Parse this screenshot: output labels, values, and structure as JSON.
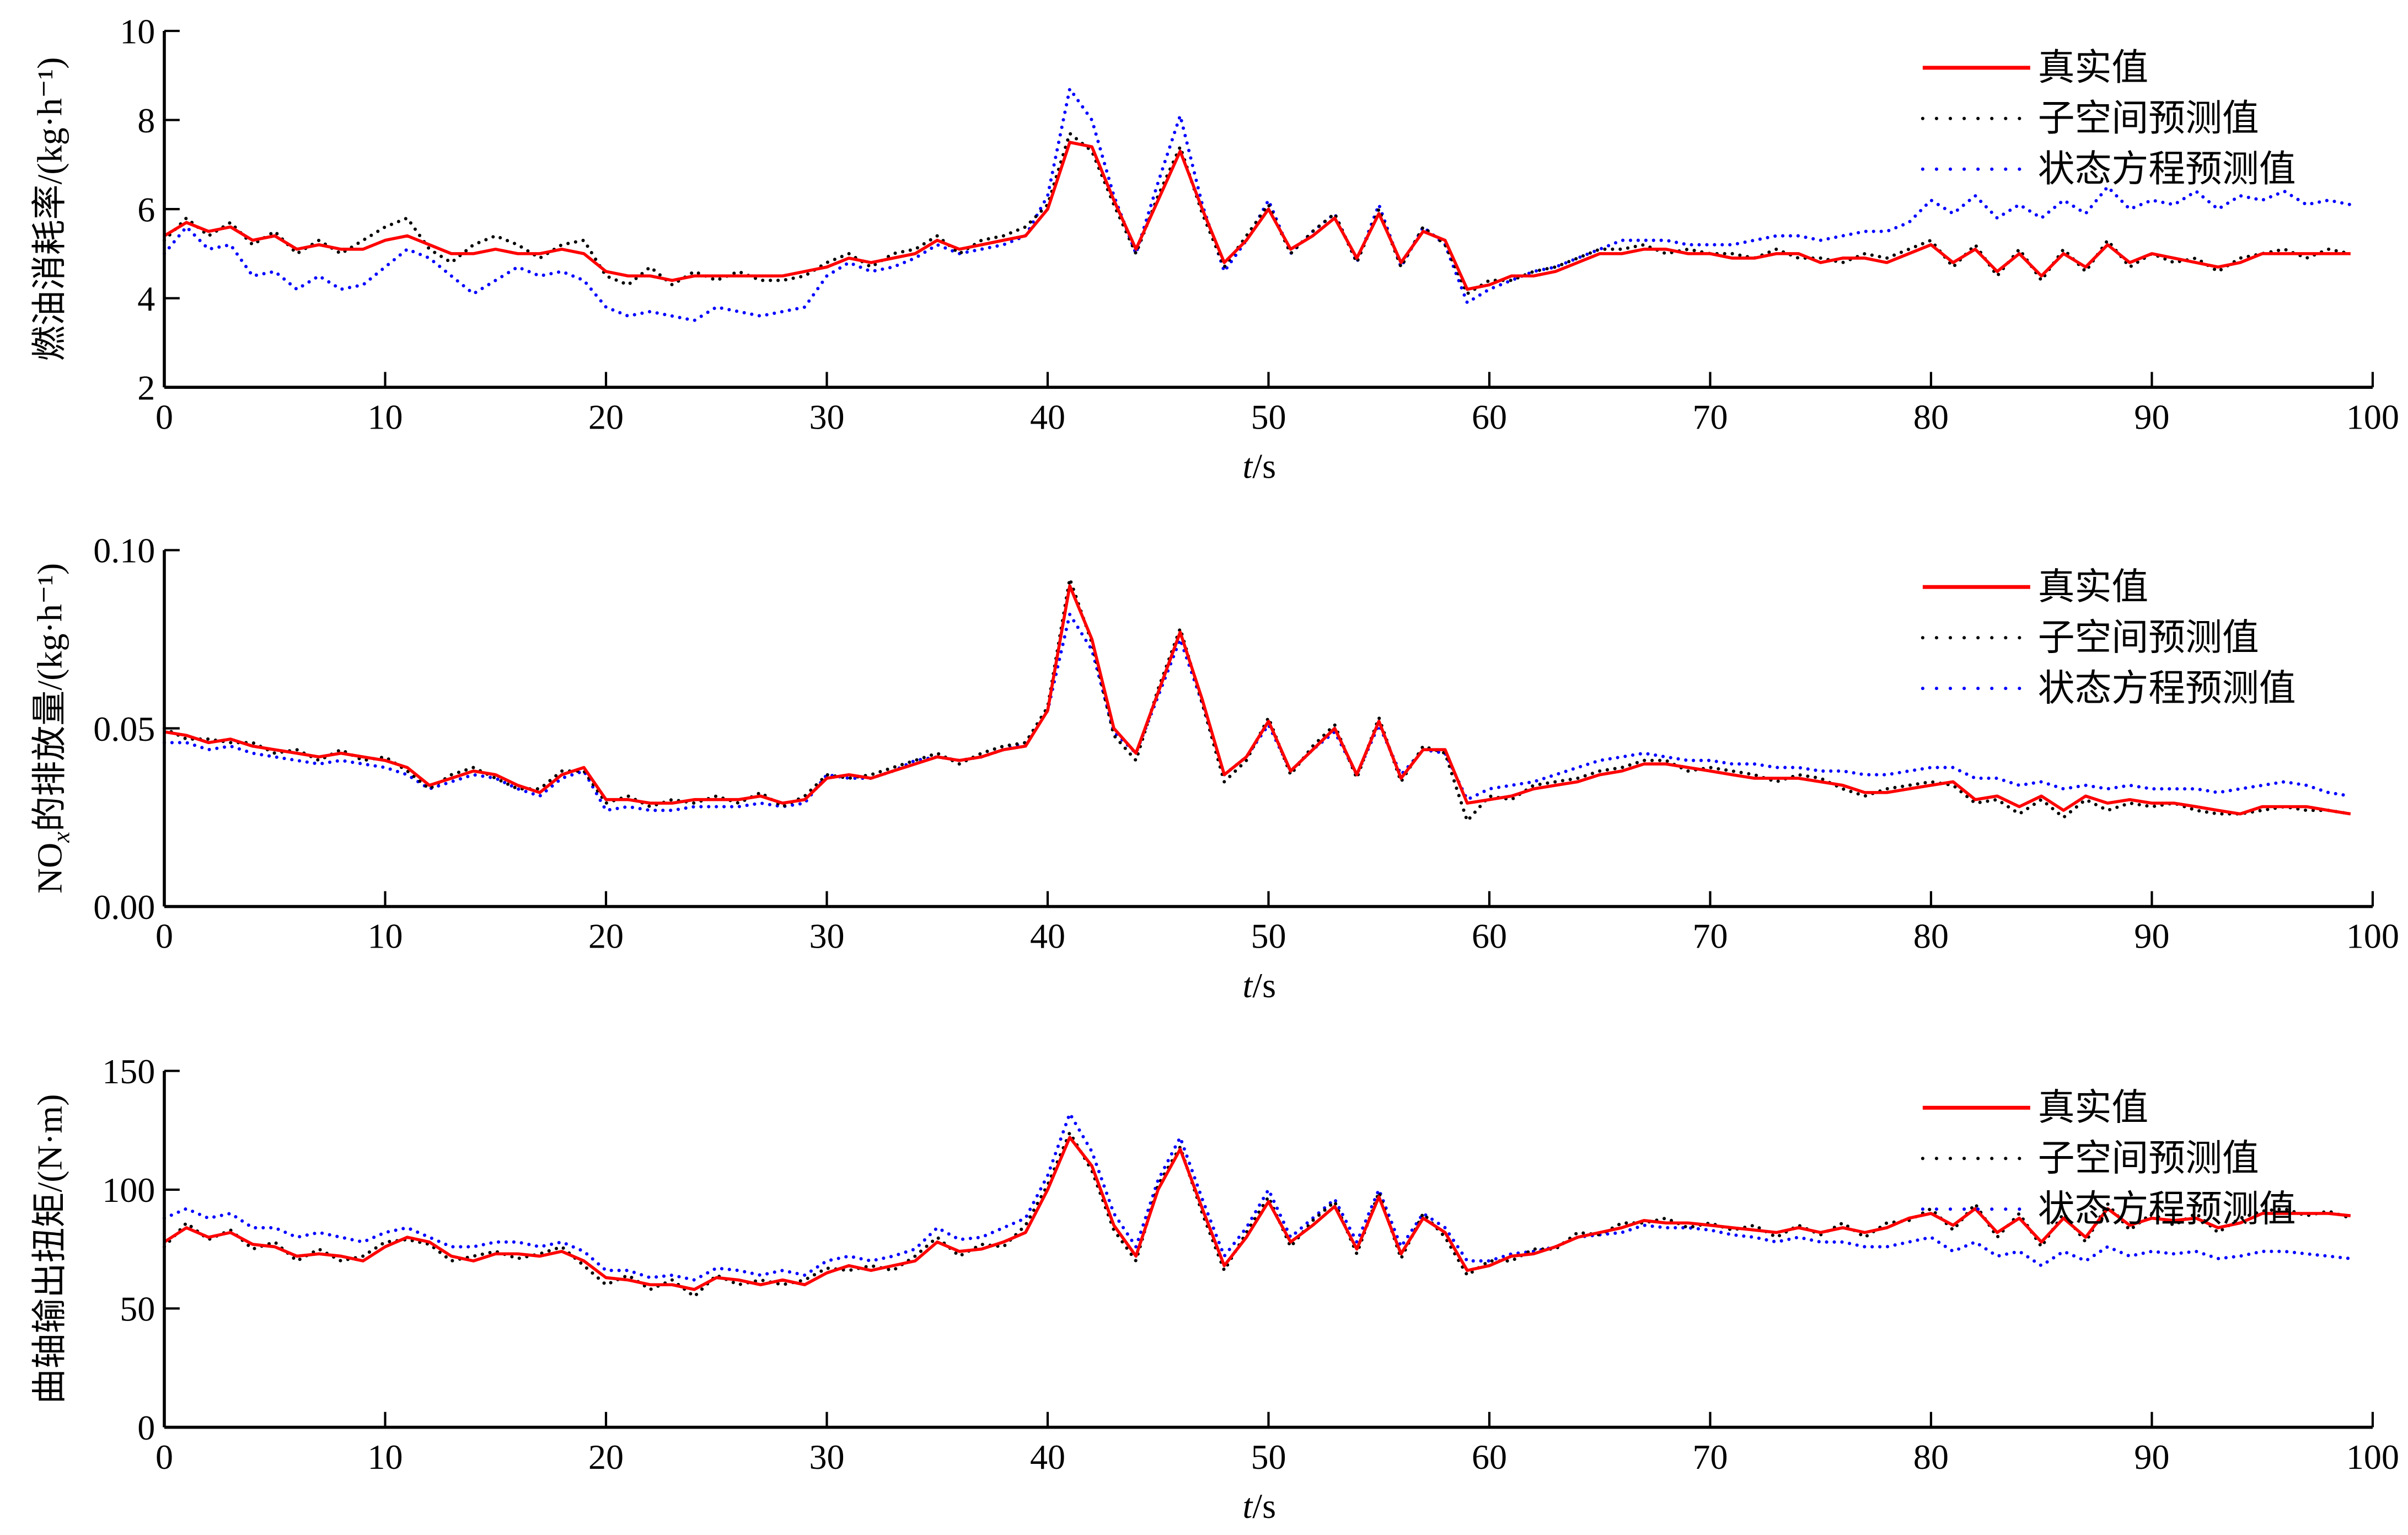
{
  "colors": {
    "truth": "#ff0000",
    "subspace": "#000000",
    "state_eq": "#0000ff",
    "axis": "#000000"
  },
  "chart_data": [
    {
      "type": "line",
      "ylabel": "燃油消耗率/(kg·h⁻¹)",
      "xlabel_italic": "t",
      "xlabel_unit": "/s",
      "xlim": [
        0,
        100
      ],
      "ylim": [
        2,
        10
      ],
      "xticks": [
        "0",
        "10",
        "20",
        "30",
        "40",
        "50",
        "60",
        "70",
        "80",
        "90",
        "100"
      ],
      "yticks": [
        "2",
        "4",
        "6",
        "8",
        "10"
      ],
      "yticks_values": [
        2,
        4,
        6,
        8,
        10
      ],
      "legend_position": "top-right",
      "x_start": 0,
      "x_step": 1,
      "series": [
        {
          "name": "真实值",
          "style": "solid",
          "values": [
            5.4,
            5.7,
            5.5,
            5.6,
            5.3,
            5.4,
            5.1,
            5.2,
            5.1,
            5.1,
            5.3,
            5.4,
            5.2,
            5.0,
            5.0,
            5.1,
            5.0,
            5.0,
            5.1,
            5.0,
            4.6,
            4.5,
            4.5,
            4.4,
            4.5,
            4.5,
            4.5,
            4.5,
            4.5,
            4.6,
            4.7,
            4.9,
            4.8,
            4.9,
            5.0,
            5.3,
            5.1,
            5.2,
            5.3,
            5.4,
            6.0,
            7.5,
            7.4,
            6.2,
            5.1,
            6.2,
            7.3,
            6.0,
            4.8,
            5.3,
            6.0,
            5.1,
            5.4,
            5.8,
            4.9,
            5.9,
            4.8,
            5.5,
            5.3,
            4.2,
            4.3,
            4.5,
            4.5,
            4.6,
            4.8,
            5.0,
            5.0,
            5.1,
            5.1,
            5.0,
            5.0,
            4.9,
            4.9,
            5.0,
            5.0,
            4.8,
            4.9,
            4.9,
            4.8,
            5.0,
            5.2,
            4.8,
            5.1,
            4.6,
            5.0,
            4.5,
            5.0,
            4.7,
            5.2,
            4.8,
            5.0,
            4.9,
            4.8,
            4.7,
            4.8,
            5.0,
            5.0,
            5.0,
            5.0,
            5.0
          ]
        },
        {
          "name": "子空间预测值",
          "style": "dotted",
          "values": [
            5.3,
            5.8,
            5.4,
            5.7,
            5.2,
            5.5,
            5.0,
            5.3,
            5.0,
            5.3,
            5.6,
            5.8,
            5.1,
            4.8,
            5.2,
            5.4,
            5.2,
            4.9,
            5.2,
            5.3,
            4.5,
            4.3,
            4.7,
            4.3,
            4.6,
            4.4,
            4.6,
            4.4,
            4.4,
            4.5,
            4.8,
            5.0,
            4.7,
            5.0,
            5.1,
            5.4,
            5.0,
            5.3,
            5.4,
            5.6,
            6.1,
            7.7,
            7.3,
            6.1,
            5.0,
            6.3,
            7.4,
            5.9,
            4.7,
            5.4,
            6.1,
            5.0,
            5.5,
            5.9,
            4.8,
            6.0,
            4.7,
            5.6,
            5.2,
            4.1,
            4.4,
            4.4,
            4.6,
            4.7,
            4.9,
            5.1,
            5.1,
            5.2,
            5.0,
            5.1,
            5.0,
            5.0,
            4.9,
            5.1,
            4.9,
            4.9,
            4.8,
            5.0,
            4.9,
            5.1,
            5.3,
            4.7,
            5.2,
            4.5,
            5.1,
            4.4,
            5.1,
            4.6,
            5.3,
            4.7,
            5.0,
            4.8,
            4.9,
            4.6,
            4.9,
            5.0,
            5.1,
            4.9,
            5.1,
            5.0
          ]
        },
        {
          "name": "状态方程预测值",
          "style": "dotted",
          "values": [
            5.0,
            5.6,
            5.1,
            5.2,
            4.5,
            4.6,
            4.2,
            4.5,
            4.2,
            4.3,
            4.7,
            5.1,
            4.9,
            4.5,
            4.1,
            4.4,
            4.7,
            4.5,
            4.6,
            4.4,
            3.8,
            3.6,
            3.7,
            3.6,
            3.5,
            3.8,
            3.7,
            3.6,
            3.7,
            3.8,
            4.5,
            4.8,
            4.6,
            4.7,
            4.9,
            5.2,
            5.0,
            5.1,
            5.2,
            5.4,
            6.3,
            8.7,
            8.0,
            6.3,
            5.0,
            6.6,
            8.1,
            6.1,
            4.6,
            5.3,
            6.2,
            5.0,
            5.5,
            5.9,
            4.8,
            6.1,
            4.7,
            5.6,
            5.2,
            3.9,
            4.2,
            4.4,
            4.6,
            4.7,
            4.9,
            5.1,
            5.3,
            5.3,
            5.3,
            5.2,
            5.2,
            5.2,
            5.3,
            5.4,
            5.4,
            5.3,
            5.4,
            5.5,
            5.5,
            5.7,
            6.2,
            5.9,
            6.3,
            5.8,
            6.1,
            5.8,
            6.2,
            5.9,
            6.5,
            6.0,
            6.2,
            6.1,
            6.4,
            6.0,
            6.3,
            6.2,
            6.4,
            6.1,
            6.2,
            6.1
          ]
        }
      ]
    },
    {
      "type": "line",
      "ylabel_main": "NO",
      "ylabel_sub": "x",
      "ylabel_rest": "的排放量/(kg·h⁻¹)",
      "xlabel_italic": "t",
      "xlabel_unit": "/s",
      "xlim": [
        0,
        100
      ],
      "ylim": [
        0,
        0.1
      ],
      "xticks": [
        "0",
        "10",
        "20",
        "30",
        "40",
        "50",
        "60",
        "70",
        "80",
        "90",
        "100"
      ],
      "yticks": [
        "0.00",
        "0.05",
        "0.10"
      ],
      "yticks_values": [
        0,
        0.05,
        0.1
      ],
      "legend_position": "top-right",
      "x_start": 0,
      "x_step": 1,
      "series": [
        {
          "name": "真实值",
          "style": "solid",
          "values": [
            0.049,
            0.048,
            0.046,
            0.047,
            0.045,
            0.044,
            0.043,
            0.042,
            0.043,
            0.042,
            0.041,
            0.039,
            0.034,
            0.036,
            0.038,
            0.037,
            0.034,
            0.032,
            0.037,
            0.039,
            0.03,
            0.03,
            0.029,
            0.029,
            0.03,
            0.03,
            0.03,
            0.031,
            0.029,
            0.03,
            0.036,
            0.037,
            0.036,
            0.038,
            0.04,
            0.042,
            0.041,
            0.042,
            0.044,
            0.045,
            0.055,
            0.09,
            0.075,
            0.05,
            0.043,
            0.06,
            0.077,
            0.058,
            0.037,
            0.042,
            0.052,
            0.038,
            0.044,
            0.05,
            0.037,
            0.052,
            0.036,
            0.044,
            0.044,
            0.029,
            0.03,
            0.031,
            0.033,
            0.034,
            0.035,
            0.037,
            0.038,
            0.04,
            0.04,
            0.039,
            0.038,
            0.037,
            0.036,
            0.036,
            0.036,
            0.035,
            0.034,
            0.032,
            0.032,
            0.033,
            0.034,
            0.035,
            0.03,
            0.031,
            0.028,
            0.031,
            0.027,
            0.031,
            0.029,
            0.03,
            0.029,
            0.029,
            0.028,
            0.027,
            0.026,
            0.028,
            0.028,
            0.028,
            0.027,
            0.026
          ]
        },
        {
          "name": "子空间预测值",
          "style": "dotted",
          "values": [
            0.05,
            0.047,
            0.047,
            0.046,
            0.046,
            0.043,
            0.044,
            0.041,
            0.044,
            0.041,
            0.042,
            0.038,
            0.033,
            0.037,
            0.039,
            0.036,
            0.033,
            0.033,
            0.038,
            0.038,
            0.029,
            0.031,
            0.028,
            0.03,
            0.029,
            0.031,
            0.029,
            0.032,
            0.028,
            0.031,
            0.037,
            0.036,
            0.037,
            0.039,
            0.041,
            0.043,
            0.04,
            0.043,
            0.045,
            0.046,
            0.056,
            0.092,
            0.074,
            0.048,
            0.041,
            0.061,
            0.078,
            0.057,
            0.035,
            0.041,
            0.053,
            0.037,
            0.045,
            0.051,
            0.036,
            0.053,
            0.035,
            0.045,
            0.043,
            0.024,
            0.031,
            0.03,
            0.034,
            0.035,
            0.036,
            0.038,
            0.039,
            0.041,
            0.041,
            0.038,
            0.039,
            0.038,
            0.037,
            0.035,
            0.037,
            0.036,
            0.033,
            0.031,
            0.033,
            0.034,
            0.035,
            0.034,
            0.029,
            0.03,
            0.026,
            0.03,
            0.025,
            0.03,
            0.027,
            0.029,
            0.028,
            0.029,
            0.027,
            0.026,
            0.026,
            0.027,
            0.028,
            0.027,
            0.027,
            0.026
          ]
        },
        {
          "name": "状态方程预测值",
          "style": "dotted",
          "values": [
            0.046,
            0.046,
            0.044,
            0.045,
            0.043,
            0.042,
            0.041,
            0.04,
            0.041,
            0.04,
            0.039,
            0.037,
            0.033,
            0.035,
            0.037,
            0.036,
            0.033,
            0.031,
            0.036,
            0.038,
            0.027,
            0.028,
            0.027,
            0.027,
            0.028,
            0.028,
            0.028,
            0.029,
            0.028,
            0.029,
            0.037,
            0.036,
            0.036,
            0.038,
            0.041,
            0.042,
            0.041,
            0.042,
            0.044,
            0.046,
            0.055,
            0.082,
            0.072,
            0.049,
            0.043,
            0.059,
            0.075,
            0.057,
            0.037,
            0.042,
            0.051,
            0.038,
            0.044,
            0.049,
            0.037,
            0.051,
            0.037,
            0.044,
            0.043,
            0.03,
            0.033,
            0.034,
            0.035,
            0.037,
            0.039,
            0.041,
            0.042,
            0.043,
            0.042,
            0.041,
            0.041,
            0.04,
            0.04,
            0.039,
            0.039,
            0.038,
            0.038,
            0.037,
            0.037,
            0.038,
            0.039,
            0.039,
            0.036,
            0.036,
            0.034,
            0.035,
            0.033,
            0.034,
            0.033,
            0.034,
            0.033,
            0.033,
            0.033,
            0.032,
            0.033,
            0.034,
            0.035,
            0.034,
            0.032,
            0.031
          ]
        }
      ]
    },
    {
      "type": "line",
      "ylabel": "曲轴输出扭矩/(N·m)",
      "xlabel_italic": "t",
      "xlabel_unit": "/s",
      "xlim": [
        0,
        100
      ],
      "ylim": [
        0,
        150
      ],
      "xticks": [
        "0",
        "10",
        "20",
        "30",
        "40",
        "50",
        "60",
        "70",
        "80",
        "90",
        "100"
      ],
      "yticks": [
        "0",
        "50",
        "100",
        "150"
      ],
      "yticks_values": [
        0,
        50,
        100,
        150
      ],
      "legend_position": "top-right",
      "x_start": 0,
      "x_step": 1,
      "series": [
        {
          "name": "真实值",
          "style": "solid",
          "values": [
            78,
            84,
            80,
            82,
            77,
            76,
            72,
            73,
            72,
            70,
            76,
            80,
            78,
            72,
            70,
            73,
            73,
            72,
            74,
            70,
            63,
            62,
            60,
            60,
            58,
            63,
            62,
            60,
            62,
            60,
            65,
            68,
            66,
            68,
            70,
            78,
            74,
            75,
            78,
            82,
            100,
            122,
            110,
            85,
            72,
            100,
            117,
            92,
            68,
            80,
            95,
            78,
            85,
            93,
            75,
            97,
            73,
            88,
            82,
            66,
            68,
            72,
            73,
            76,
            80,
            82,
            84,
            87,
            86,
            86,
            85,
            84,
            83,
            82,
            84,
            82,
            84,
            82,
            84,
            88,
            90,
            85,
            92,
            82,
            88,
            78,
            88,
            80,
            92,
            85,
            88,
            87,
            88,
            84,
            86,
            90,
            90,
            90,
            90,
            89
          ]
        },
        {
          "name": "子空间预测值",
          "style": "dotted",
          "values": [
            76,
            86,
            79,
            83,
            75,
            78,
            70,
            75,
            70,
            72,
            78,
            79,
            77,
            70,
            72,
            74,
            71,
            73,
            76,
            68,
            60,
            64,
            58,
            62,
            55,
            64,
            60,
            62,
            60,
            62,
            67,
            66,
            68,
            66,
            72,
            80,
            72,
            77,
            76,
            85,
            102,
            124,
            108,
            83,
            70,
            102,
            118,
            90,
            66,
            82,
            97,
            76,
            87,
            95,
            73,
            99,
            71,
            90,
            80,
            64,
            70,
            70,
            75,
            75,
            82,
            81,
            86,
            86,
            88,
            84,
            86,
            83,
            85,
            80,
            85,
            81,
            86,
            80,
            86,
            87,
            92,
            83,
            94,
            80,
            90,
            76,
            90,
            78,
            94,
            83,
            90,
            85,
            90,
            82,
            88,
            91,
            92,
            89,
            91,
            88
          ]
        },
        {
          "name": "状态方程预测值",
          "style": "dotted",
          "values": [
            88,
            92,
            88,
            90,
            84,
            84,
            80,
            82,
            80,
            78,
            82,
            84,
            80,
            76,
            76,
            78,
            78,
            76,
            78,
            74,
            66,
            66,
            63,
            64,
            62,
            67,
            66,
            64,
            66,
            64,
            70,
            72,
            70,
            72,
            75,
            84,
            79,
            80,
            84,
            88,
            106,
            132,
            116,
            90,
            76,
            104,
            122,
            96,
            72,
            84,
            100,
            80,
            88,
            96,
            78,
            100,
            76,
            90,
            84,
            70,
            70,
            73,
            74,
            76,
            80,
            81,
            82,
            85,
            84,
            84,
            83,
            81,
            80,
            78,
            80,
            78,
            78,
            76,
            76,
            78,
            80,
            74,
            78,
            72,
            74,
            68,
            74,
            70,
            76,
            72,
            74,
            73,
            74,
            71,
            72,
            74,
            74,
            73,
            72,
            71
          ]
        }
      ]
    }
  ]
}
